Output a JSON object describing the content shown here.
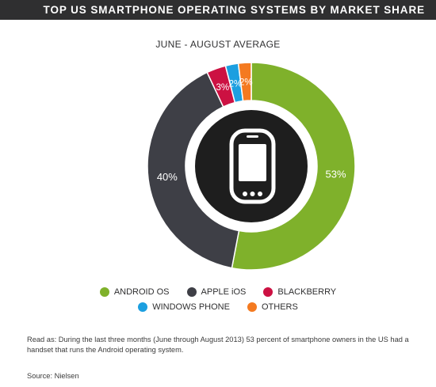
{
  "header": {
    "title": "TOP US SMARTPHONE OPERATING SYSTEMS BY MARKET SHARE"
  },
  "chart_data": {
    "type": "pie",
    "title": "TOP US SMARTPHONE OPERATING SYSTEMS BY MARKET SHARE",
    "subtitle": "JUNE - AUGUST AVERAGE",
    "categories": [
      "ANDROID OS",
      "APPLE iOS",
      "BLACKBERRY",
      "WINDOWS PHONE",
      "OTHERS"
    ],
    "values": [
      53,
      40,
      3,
      2,
      2
    ],
    "labels": [
      "53%",
      "40%",
      "3%",
      "2%",
      "2%"
    ],
    "colors": [
      "#7fb12b",
      "#3e3f46",
      "#cc1142",
      "#1c9fe0",
      "#f47a20"
    ],
    "legend_position": "bottom"
  },
  "center_icon": "smartphone-icon",
  "footnote": "Read as: During the last three months (June through August 2013) 53 percent of smartphone owners in the US had a handset that runs the Android operating system.",
  "source": "Source: Nielsen"
}
